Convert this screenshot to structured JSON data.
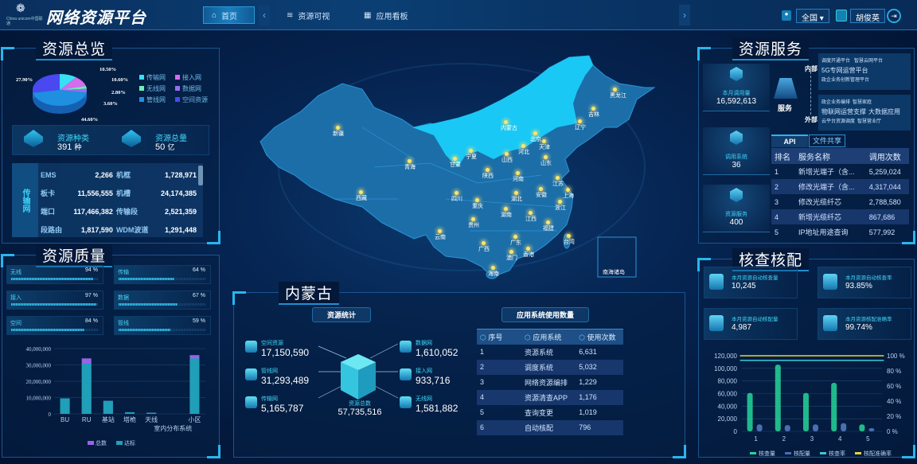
{
  "header": {
    "brand": "China unicom中国联通",
    "title": "网络资源平台",
    "nav": [
      {
        "label": "首页",
        "icon": "home-icon"
      },
      {
        "label": "资源可视",
        "icon": "layers-icon"
      },
      {
        "label": "应用看板",
        "icon": "grid-icon"
      }
    ],
    "region": "全国",
    "user": "胡俊英"
  },
  "overview": {
    "title": "资源总览",
    "pie": [
      {
        "name": "传输网",
        "percent": 10.5,
        "label": "10.50%",
        "color": "#37e0f5"
      },
      {
        "name": "接入网",
        "percent": 10.6,
        "label": "10.60%",
        "color": "#d66bf0"
      },
      {
        "name": "无线网",
        "percent": 2.8,
        "label": "2.80%",
        "color": "#6cf0b8"
      },
      {
        "name": "数据网",
        "percent": 3.6,
        "label": "3.60%",
        "color": "#9b6cf5"
      },
      {
        "name": "管线网",
        "percent": 44.6,
        "label": "44.60%",
        "color": "#1f8fe0"
      },
      {
        "name": "空间资源",
        "percent": 27.9,
        "label": "27.90%",
        "color": "#4a48f0"
      }
    ],
    "types_label": "资源种类",
    "types_value": "391",
    "types_unit": "种",
    "total_label": "资源总量",
    "total_value": "50",
    "total_unit": "亿",
    "table_category": "传输网",
    "table": [
      [
        "EMS",
        "2,266",
        "机框",
        "1,728,971"
      ],
      [
        "板卡",
        "11,556,555",
        "机槽",
        "24,174,385"
      ],
      [
        "端口",
        "117,466,382",
        "传输段",
        "2,521,359"
      ],
      [
        "段路由",
        "1,817,590",
        "WDM波道",
        "1,291,448"
      ]
    ]
  },
  "quality": {
    "title": "资源质量",
    "bars": [
      {
        "label": "无线",
        "value": 94,
        "text": "94 %"
      },
      {
        "label": "传输",
        "value": 64,
        "text": "64 %"
      },
      {
        "label": "接入",
        "value": 97,
        "text": "97 %"
      },
      {
        "label": "数据",
        "value": 67,
        "text": "67 %"
      },
      {
        "label": "空间",
        "value": 84,
        "text": "84 %"
      },
      {
        "label": "管线",
        "value": 59,
        "text": "59 %"
      }
    ]
  },
  "chart_data": [
    {
      "type": "bar",
      "categories": [
        "BU",
        "RU",
        "基站",
        "塔桅",
        "天线",
        "室内分布系统",
        "小区"
      ],
      "series": [
        {
          "name": "总数",
          "color": "#9a62e8",
          "values": [
            9500000,
            34000000,
            8000000,
            1000000,
            700000,
            0,
            36000000
          ]
        },
        {
          "name": "达标",
          "color": "#1f9fb8",
          "values": [
            9500000,
            31000000,
            8000000,
            1000000,
            700000,
            0,
            34000000
          ]
        }
      ],
      "yticks": [
        "0",
        "10,000,000",
        "20,000,000",
        "30,000,000",
        "40,000,000"
      ],
      "ylim": [
        0,
        40000000
      ],
      "grid": true,
      "legend": "bottom"
    },
    {
      "type": "bar",
      "categories": [
        "1",
        "2",
        "3",
        "4",
        "5"
      ],
      "series": [
        {
          "name": "核查量",
          "axis": "left",
          "color": "#25d59a",
          "values": [
            61000,
            106000,
            61000,
            77000,
            11000
          ]
        },
        {
          "name": "核配量",
          "axis": "left",
          "color": "#4a6fb0",
          "values": [
            11000,
            10000,
            11000,
            13000,
            5000
          ]
        },
        {
          "name": "核查率",
          "axis": "right",
          "type": "line",
          "color": "#36c9d8",
          "values": [
            94,
            94,
            94,
            94,
            94
          ]
        },
        {
          "name": "核配准确率",
          "axis": "right",
          "type": "line",
          "color": "#e8d23a",
          "values": [
            100,
            100,
            100,
            100,
            100
          ]
        }
      ],
      "yticks_left": [
        "0",
        "20,000",
        "40,000",
        "60,000",
        "80,000",
        "100,000",
        "120,000"
      ],
      "yticks_right": [
        "0 %",
        "20 %",
        "40 %",
        "60 %",
        "80 %",
        "100 %"
      ],
      "ylim_left": [
        0,
        120000
      ],
      "ylim_right": [
        0,
        100
      ],
      "grid": true,
      "legend": "bottom"
    }
  ],
  "map": {
    "highlight": "内蒙古",
    "provinces": [
      "新疆",
      "西藏",
      "青海",
      "甘肃",
      "宁夏",
      "内蒙古",
      "黑龙江",
      "吉林",
      "辽宁",
      "北京",
      "天津",
      "河北",
      "山西",
      "山东",
      "陕西",
      "河南",
      "江苏",
      "安徽",
      "上海",
      "湖北",
      "四川",
      "重庆",
      "浙江",
      "湖南",
      "江西",
      "贵州",
      "福建",
      "云南",
      "台湾",
      "广西",
      "广东",
      "香港",
      "澳门",
      "海南"
    ],
    "inset": "南海诸岛"
  },
  "region_panel": {
    "title": "内蒙古",
    "stats_title": "资源统计",
    "usage_title": "应用系统使用数量",
    "left": [
      {
        "label": "空间资源",
        "value": "17,150,590"
      },
      {
        "label": "管线网",
        "value": "31,293,489"
      },
      {
        "label": "传输网",
        "value": "5,165,787"
      }
    ],
    "right": [
      {
        "label": "数据网",
        "value": "1,610,052"
      },
      {
        "label": "接入网",
        "value": "933,716"
      },
      {
        "label": "无线网",
        "value": "1,581,882"
      }
    ],
    "total_label": "资源总数",
    "total_value": "57,735,516",
    "table_headers": [
      "序号",
      "应用系统",
      "使用次数"
    ],
    "table": [
      [
        "1",
        "资源系统",
        "6,631"
      ],
      [
        "2",
        "调度系统",
        "5,032"
      ],
      [
        "3",
        "网络资源编排",
        "1,229"
      ],
      [
        "4",
        "资源清查APP",
        "1,176"
      ],
      [
        "5",
        "查询变更",
        "1,019"
      ],
      [
        "6",
        "自动核配",
        "796"
      ]
    ]
  },
  "service": {
    "title": "资源服务",
    "stats": [
      {
        "label": "本月调用量",
        "value": "16,592,613"
      },
      {
        "label": "调用系统",
        "value": "36"
      },
      {
        "label": "资源服务",
        "value": "400"
      }
    ],
    "center_label": "服务",
    "internal_label": "内部",
    "external_label": "外部",
    "internal": [
      "调度开通平台",
      "智慧云网平台",
      "5G专网运营平台",
      "政企业务创新管理平台"
    ],
    "external": [
      "政企业务编排",
      "智慧家庭",
      "物联网运营支撑",
      "大数据应用",
      "云平台资源调度",
      "智慧营业厅"
    ],
    "tabs": [
      "API",
      "文件共享"
    ],
    "table_headers": [
      "排名",
      "服务名称",
      "调用次数"
    ],
    "table": [
      [
        "1",
        "新增光端子（含...",
        "5,259,024"
      ],
      [
        "2",
        "修改光端子（含...",
        "4,317,044"
      ],
      [
        "3",
        "修改光缆纤芯",
        "2,788,580"
      ],
      [
        "4",
        "新增光缆纤芯",
        "867,686"
      ],
      [
        "5",
        "IP地址用途查询",
        "577,992"
      ]
    ]
  },
  "check": {
    "title": "核查核配",
    "cards": [
      {
        "label": "本月资源自动核查量",
        "value": "10,245"
      },
      {
        "label": "本月资源自动核查率",
        "value": "93.85%"
      },
      {
        "label": "本月资源自动核配量",
        "value": "4,987"
      },
      {
        "label": "本月资源核配准确率",
        "value": "99.74%"
      }
    ]
  }
}
